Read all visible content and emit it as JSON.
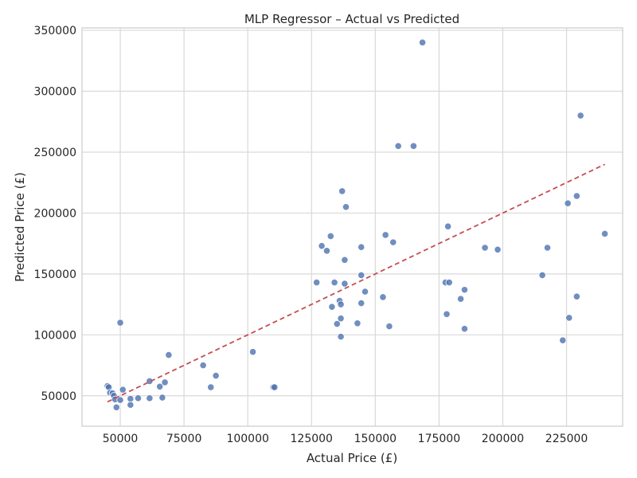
{
  "chart_data": {
    "type": "scatter",
    "title": "MLP Regressor – Actual vs Predicted",
    "xlabel": "Actual Price (£)",
    "ylabel": "Predicted Price (£)",
    "xlim": [
      35000,
      247000
    ],
    "ylim": [
      25000,
      352000
    ],
    "x_ticks": [
      50000,
      75000,
      100000,
      125000,
      150000,
      175000,
      200000,
      225000
    ],
    "y_ticks": [
      50000,
      100000,
      150000,
      200000,
      250000,
      300000,
      350000
    ],
    "x_tick_labels": [
      "50000",
      "75000",
      "100000",
      "125000",
      "150000",
      "175000",
      "200000",
      "225000"
    ],
    "y_tick_labels": [
      "50000",
      "100000",
      "150000",
      "200000",
      "250000",
      "300000",
      "350000"
    ],
    "grid": true,
    "colors": {
      "points": "#4C72B0",
      "ref_line": "#C44E52",
      "grid": "#D9D9D9",
      "spine": "#CCCCCC"
    },
    "reference_line": {
      "style": "dashed",
      "x": [
        45000,
        240000
      ],
      "y": [
        45000,
        240000
      ]
    },
    "points": [
      {
        "x": 45000,
        "y": 58000
      },
      {
        "x": 45500,
        "y": 57000
      },
      {
        "x": 46000,
        "y": 52500
      },
      {
        "x": 47000,
        "y": 52000
      },
      {
        "x": 47500,
        "y": 50000
      },
      {
        "x": 48000,
        "y": 47000
      },
      {
        "x": 48500,
        "y": 40500
      },
      {
        "x": 50000,
        "y": 46500
      },
      {
        "x": 50000,
        "y": 110000
      },
      {
        "x": 51000,
        "y": 55000
      },
      {
        "x": 54000,
        "y": 47500
      },
      {
        "x": 54000,
        "y": 42500
      },
      {
        "x": 57000,
        "y": 48000
      },
      {
        "x": 61500,
        "y": 62000
      },
      {
        "x": 61500,
        "y": 48000
      },
      {
        "x": 65500,
        "y": 57500
      },
      {
        "x": 66500,
        "y": 48500
      },
      {
        "x": 67500,
        "y": 61000
      },
      {
        "x": 69000,
        "y": 83500
      },
      {
        "x": 82500,
        "y": 75000
      },
      {
        "x": 85500,
        "y": 57000
      },
      {
        "x": 87500,
        "y": 66500
      },
      {
        "x": 102000,
        "y": 86000
      },
      {
        "x": 110000,
        "y": 57000
      },
      {
        "x": 110500,
        "y": 57000
      },
      {
        "x": 127000,
        "y": 143000
      },
      {
        "x": 129000,
        "y": 173000
      },
      {
        "x": 131000,
        "y": 169000
      },
      {
        "x": 132500,
        "y": 181000
      },
      {
        "x": 133000,
        "y": 123000
      },
      {
        "x": 134000,
        "y": 143000
      },
      {
        "x": 135000,
        "y": 109000
      },
      {
        "x": 136000,
        "y": 128000
      },
      {
        "x": 136500,
        "y": 125000
      },
      {
        "x": 136500,
        "y": 113500
      },
      {
        "x": 136500,
        "y": 98500
      },
      {
        "x": 137000,
        "y": 218000
      },
      {
        "x": 138000,
        "y": 142000
      },
      {
        "x": 138000,
        "y": 161500
      },
      {
        "x": 138500,
        "y": 205000
      },
      {
        "x": 143000,
        "y": 109500
      },
      {
        "x": 144500,
        "y": 172000
      },
      {
        "x": 144500,
        "y": 149000
      },
      {
        "x": 144500,
        "y": 126000
      },
      {
        "x": 146000,
        "y": 135500
      },
      {
        "x": 153000,
        "y": 131000
      },
      {
        "x": 154000,
        "y": 182000
      },
      {
        "x": 155500,
        "y": 107000
      },
      {
        "x": 157000,
        "y": 176000
      },
      {
        "x": 159000,
        "y": 255000
      },
      {
        "x": 165000,
        "y": 255000
      },
      {
        "x": 168500,
        "y": 340000
      },
      {
        "x": 177500,
        "y": 143000
      },
      {
        "x": 178000,
        "y": 117000
      },
      {
        "x": 178500,
        "y": 189000
      },
      {
        "x": 179000,
        "y": 143000
      },
      {
        "x": 183500,
        "y": 129500
      },
      {
        "x": 185000,
        "y": 137000
      },
      {
        "x": 185000,
        "y": 105000
      },
      {
        "x": 193000,
        "y": 171500
      },
      {
        "x": 198000,
        "y": 170000
      },
      {
        "x": 215500,
        "y": 149000
      },
      {
        "x": 217500,
        "y": 171500
      },
      {
        "x": 223500,
        "y": 95500
      },
      {
        "x": 225500,
        "y": 208000
      },
      {
        "x": 226000,
        "y": 114000
      },
      {
        "x": 229000,
        "y": 214000
      },
      {
        "x": 229000,
        "y": 131500
      },
      {
        "x": 230500,
        "y": 280000
      },
      {
        "x": 240000,
        "y": 183000
      }
    ]
  }
}
